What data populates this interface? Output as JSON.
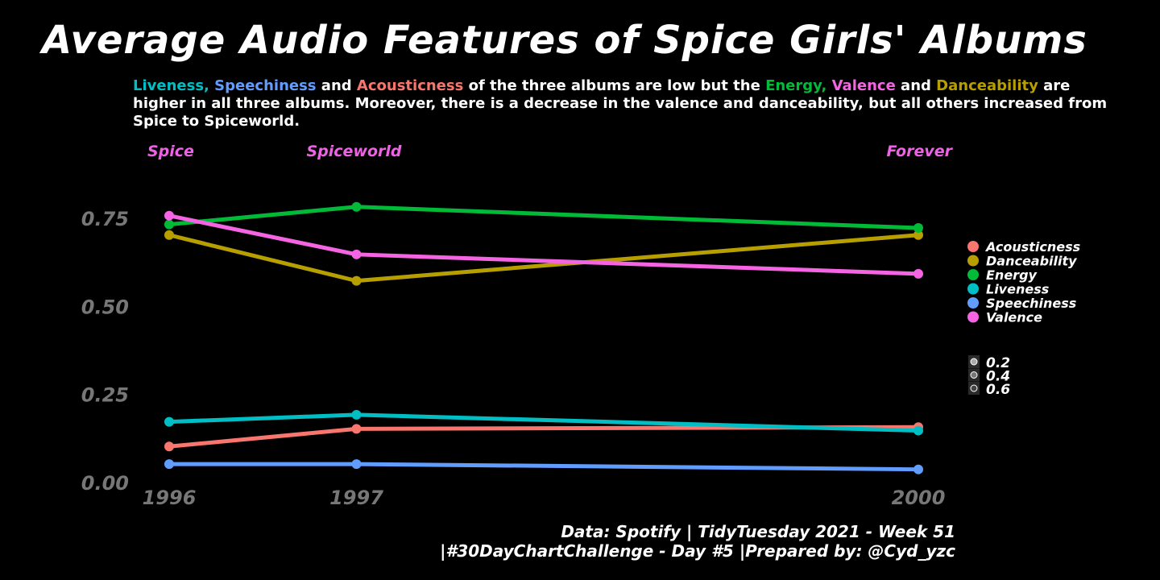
{
  "title": "Average Audio Features of Spice Girls' Albums",
  "subtitle": {
    "parts": [
      {
        "text": "Liveness,",
        "color": "#00BFC4"
      },
      {
        "text": " ",
        "color": "#FFFFFF"
      },
      {
        "text": "Speechiness",
        "color": "#619CFF"
      },
      {
        "text": " and ",
        "color": "#FFFFFF"
      },
      {
        "text": "Acousticness",
        "color": "#F8766D"
      },
      {
        "text": " of the three albums are low but the ",
        "color": "#FFFFFF"
      },
      {
        "text": "Energy,",
        "color": "#00BA38"
      },
      {
        "text": " ",
        "color": "#FFFFFF"
      },
      {
        "text": "Valence",
        "color": "#F564E3"
      },
      {
        "text": " and ",
        "color": "#FFFFFF"
      },
      {
        "text": "Danceability",
        "color": "#B79F00"
      },
      {
        "text": "  are higher in all three albums. Moreover, there is a decrease in the valence and danceability, but all others increased from Spice to Spiceworld.",
        "color": "#FFFFFF"
      }
    ]
  },
  "caption": {
    "line1": "Data: Spotify | TidyTuesday 2021 - Week 51",
    "line2": "|#30DayChartChallenge - Day #5 |Prepared by: @Cyd_yzc"
  },
  "chart_data": {
    "type": "line",
    "x": [
      1996,
      1997,
      2000
    ],
    "x_tick_labels": [
      "1996",
      "1997",
      "2000"
    ],
    "album_labels": [
      {
        "x": 1996,
        "text": "Spice"
      },
      {
        "x": 1997,
        "text": "Spiceworld"
      },
      {
        "x": 2000,
        "text": "Forever"
      }
    ],
    "ylim": [
      0,
      0.8
    ],
    "y_ticks": [
      0.0,
      0.25,
      0.5,
      0.75
    ],
    "y_tick_labels": [
      "0.00",
      "0.25",
      "0.50",
      "0.75"
    ],
    "grid": false,
    "legend_position": "right",
    "series": [
      {
        "name": "Acousticness",
        "color": "#F8766D",
        "values": [
          0.1,
          0.15,
          0.155
        ]
      },
      {
        "name": "Danceability",
        "color": "#B79F00",
        "values": [
          0.7,
          0.57,
          0.7
        ]
      },
      {
        "name": "Energy",
        "color": "#00BA38",
        "values": [
          0.73,
          0.78,
          0.72
        ]
      },
      {
        "name": "Liveness",
        "color": "#00BFC4",
        "values": [
          0.17,
          0.19,
          0.145
        ]
      },
      {
        "name": "Speechiness",
        "color": "#619CFF",
        "values": [
          0.05,
          0.05,
          0.035
        ]
      },
      {
        "name": "Valence",
        "color": "#F564E3",
        "values": [
          0.755,
          0.645,
          0.59
        ]
      }
    ],
    "size_legend": {
      "values": [
        "0.2",
        "0.4",
        "0.6"
      ],
      "color": "#FFFFFF"
    }
  }
}
